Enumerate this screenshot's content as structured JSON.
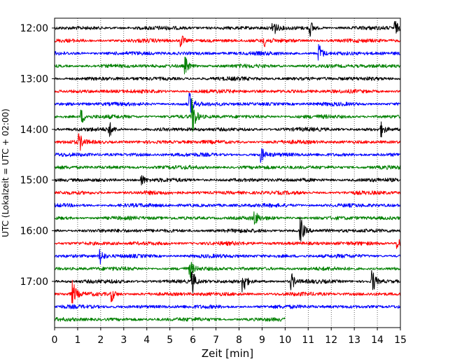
{
  "chart_data": {
    "type": "line",
    "title": "",
    "xlabel": "Zeit  [min]",
    "ylabel": "UTC (Lokalzeit = UTC + 02:00)",
    "xlim": [
      0,
      15
    ],
    "x_ticks": [
      0,
      1,
      2,
      3,
      4,
      5,
      6,
      7,
      8,
      9,
      10,
      11,
      12,
      13,
      14,
      15
    ],
    "y_ticks": [
      "12:00",
      "13:00",
      "14:00",
      "15:00",
      "16:00",
      "17:00"
    ],
    "grid": "vertical dotted",
    "trace_colors": [
      "#000000",
      "#ff0000",
      "#0000ff",
      "#008000"
    ],
    "trace_minutes": [
      "12:00",
      "12:15",
      "12:30",
      "12:45",
      "13:00",
      "13:15",
      "13:30",
      "13:45",
      "14:00",
      "14:15",
      "14:30",
      "14:45",
      "15:00",
      "15:15",
      "15:30",
      "15:45",
      "16:00",
      "16:15",
      "16:30",
      "16:45",
      "17:00",
      "17:15",
      "17:30",
      "17:45"
    ],
    "last_trace_end_min": 10,
    "events": [
      {
        "trace": "12:00",
        "t": 9.5,
        "amp": 0.7
      },
      {
        "trace": "12:00",
        "t": 11.1,
        "amp": 0.6
      },
      {
        "trace": "12:00",
        "t": 14.8,
        "amp": 0.5
      },
      {
        "trace": "12:15",
        "t": 5.5,
        "amp": 0.5
      },
      {
        "trace": "12:15",
        "t": 9.1,
        "amp": 0.4
      },
      {
        "trace": "12:30",
        "t": 11.5,
        "amp": 0.7
      },
      {
        "trace": "12:45",
        "t": 5.7,
        "amp": 0.6
      },
      {
        "trace": "13:30",
        "t": 5.9,
        "amp": 0.9
      },
      {
        "trace": "13:45",
        "t": 6.0,
        "amp": 1.4
      },
      {
        "trace": "13:45",
        "t": 1.2,
        "amp": 0.5
      },
      {
        "trace": "14:00",
        "t": 2.4,
        "amp": 0.5
      },
      {
        "trace": "14:00",
        "t": 14.2,
        "amp": 0.5
      },
      {
        "trace": "14:15",
        "t": 1.1,
        "amp": 0.6
      },
      {
        "trace": "14:30",
        "t": 9.0,
        "amp": 0.5
      },
      {
        "trace": "15:00",
        "t": 3.8,
        "amp": 0.4
      },
      {
        "trace": "15:45",
        "t": 8.7,
        "amp": 0.5
      },
      {
        "trace": "16:00",
        "t": 10.7,
        "amp": 1.0
      },
      {
        "trace": "16:15",
        "t": 14.9,
        "amp": 0.5
      },
      {
        "trace": "16:30",
        "t": 2.0,
        "amp": 0.6
      },
      {
        "trace": "16:45",
        "t": 5.9,
        "amp": 0.6
      },
      {
        "trace": "17:00",
        "t": 6.0,
        "amp": 0.8
      },
      {
        "trace": "17:00",
        "t": 8.2,
        "amp": 0.9
      },
      {
        "trace": "17:00",
        "t": 10.3,
        "amp": 0.6
      },
      {
        "trace": "17:00",
        "t": 13.8,
        "amp": 1.0
      },
      {
        "trace": "17:15",
        "t": 0.8,
        "amp": 1.0
      },
      {
        "trace": "17:15",
        "t": 2.5,
        "amp": 0.5
      }
    ]
  }
}
